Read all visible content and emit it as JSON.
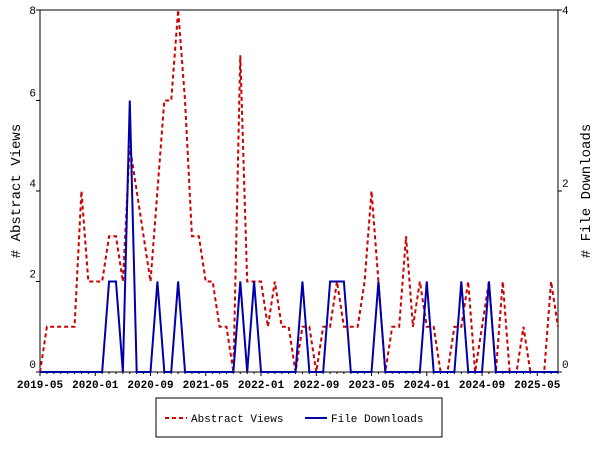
{
  "chart_data": {
    "type": "line",
    "y_label": "# Abstract Views",
    "y2_label": "# File Downloads",
    "categories": [
      "2019-05",
      null,
      null,
      null,
      null,
      null,
      null,
      null,
      "2020-01",
      null,
      null,
      null,
      null,
      null,
      null,
      null,
      "2020-09",
      null,
      null,
      null,
      null,
      null,
      null,
      null,
      "2021-05",
      null,
      null,
      null,
      null,
      null,
      null,
      null,
      "2022-01",
      null,
      null,
      null,
      null,
      null,
      null,
      null,
      "2022-09",
      null,
      null,
      null,
      null,
      null,
      null,
      null,
      "2023-05",
      null,
      null,
      null,
      null,
      null,
      null,
      null,
      "2024-01",
      null,
      null,
      null,
      null,
      null,
      null,
      null,
      "2024-09",
      null,
      null,
      null,
      null,
      null,
      null,
      null,
      "2025-05",
      null,
      null,
      null
    ],
    "series": [
      {
        "name": "Abstract Views",
        "color": "#cc0000",
        "dash": true,
        "values": [
          0,
          1,
          1,
          1,
          1,
          1,
          4,
          2,
          2,
          2,
          3,
          3,
          2,
          5,
          4,
          3,
          2,
          4,
          6,
          6,
          8,
          6,
          3,
          3,
          2,
          2,
          1,
          1,
          0,
          7,
          2,
          2,
          2,
          1,
          2,
          1,
          1,
          0,
          1,
          1,
          0,
          1,
          1,
          2,
          1,
          1,
          1,
          2,
          4,
          2,
          0,
          1,
          1,
          3,
          1,
          2,
          1,
          1,
          0,
          0,
          1,
          1,
          2,
          0,
          1,
          2,
          0,
          2,
          0,
          0,
          1,
          0,
          0,
          0,
          2,
          1
        ]
      },
      {
        "name": "File Downloads",
        "color": "#0000aa",
        "dash": false,
        "axis": "y2",
        "values": [
          0,
          0,
          0,
          0,
          0,
          0,
          0,
          0,
          0,
          0,
          1,
          1,
          0,
          3,
          0,
          0,
          0,
          1,
          0,
          0,
          1,
          0,
          0,
          0,
          0,
          0,
          0,
          0,
          0,
          1,
          0,
          1,
          0,
          0,
          0,
          0,
          0,
          0,
          1,
          0,
          0,
          0,
          1,
          1,
          1,
          0,
          0,
          0,
          0,
          1,
          0,
          0,
          0,
          0,
          0,
          0,
          1,
          0,
          0,
          0,
          0,
          1,
          0,
          0,
          0,
          1,
          0,
          0,
          0,
          0,
          0,
          0,
          0,
          0,
          0,
          0
        ]
      }
    ],
    "ylim": [
      0,
      8
    ],
    "yticks": [
      0,
      2,
      4,
      6,
      8
    ],
    "y2lim": [
      0,
      4
    ],
    "y2ticks": [
      0,
      2,
      4
    ],
    "legend": "bottom"
  }
}
